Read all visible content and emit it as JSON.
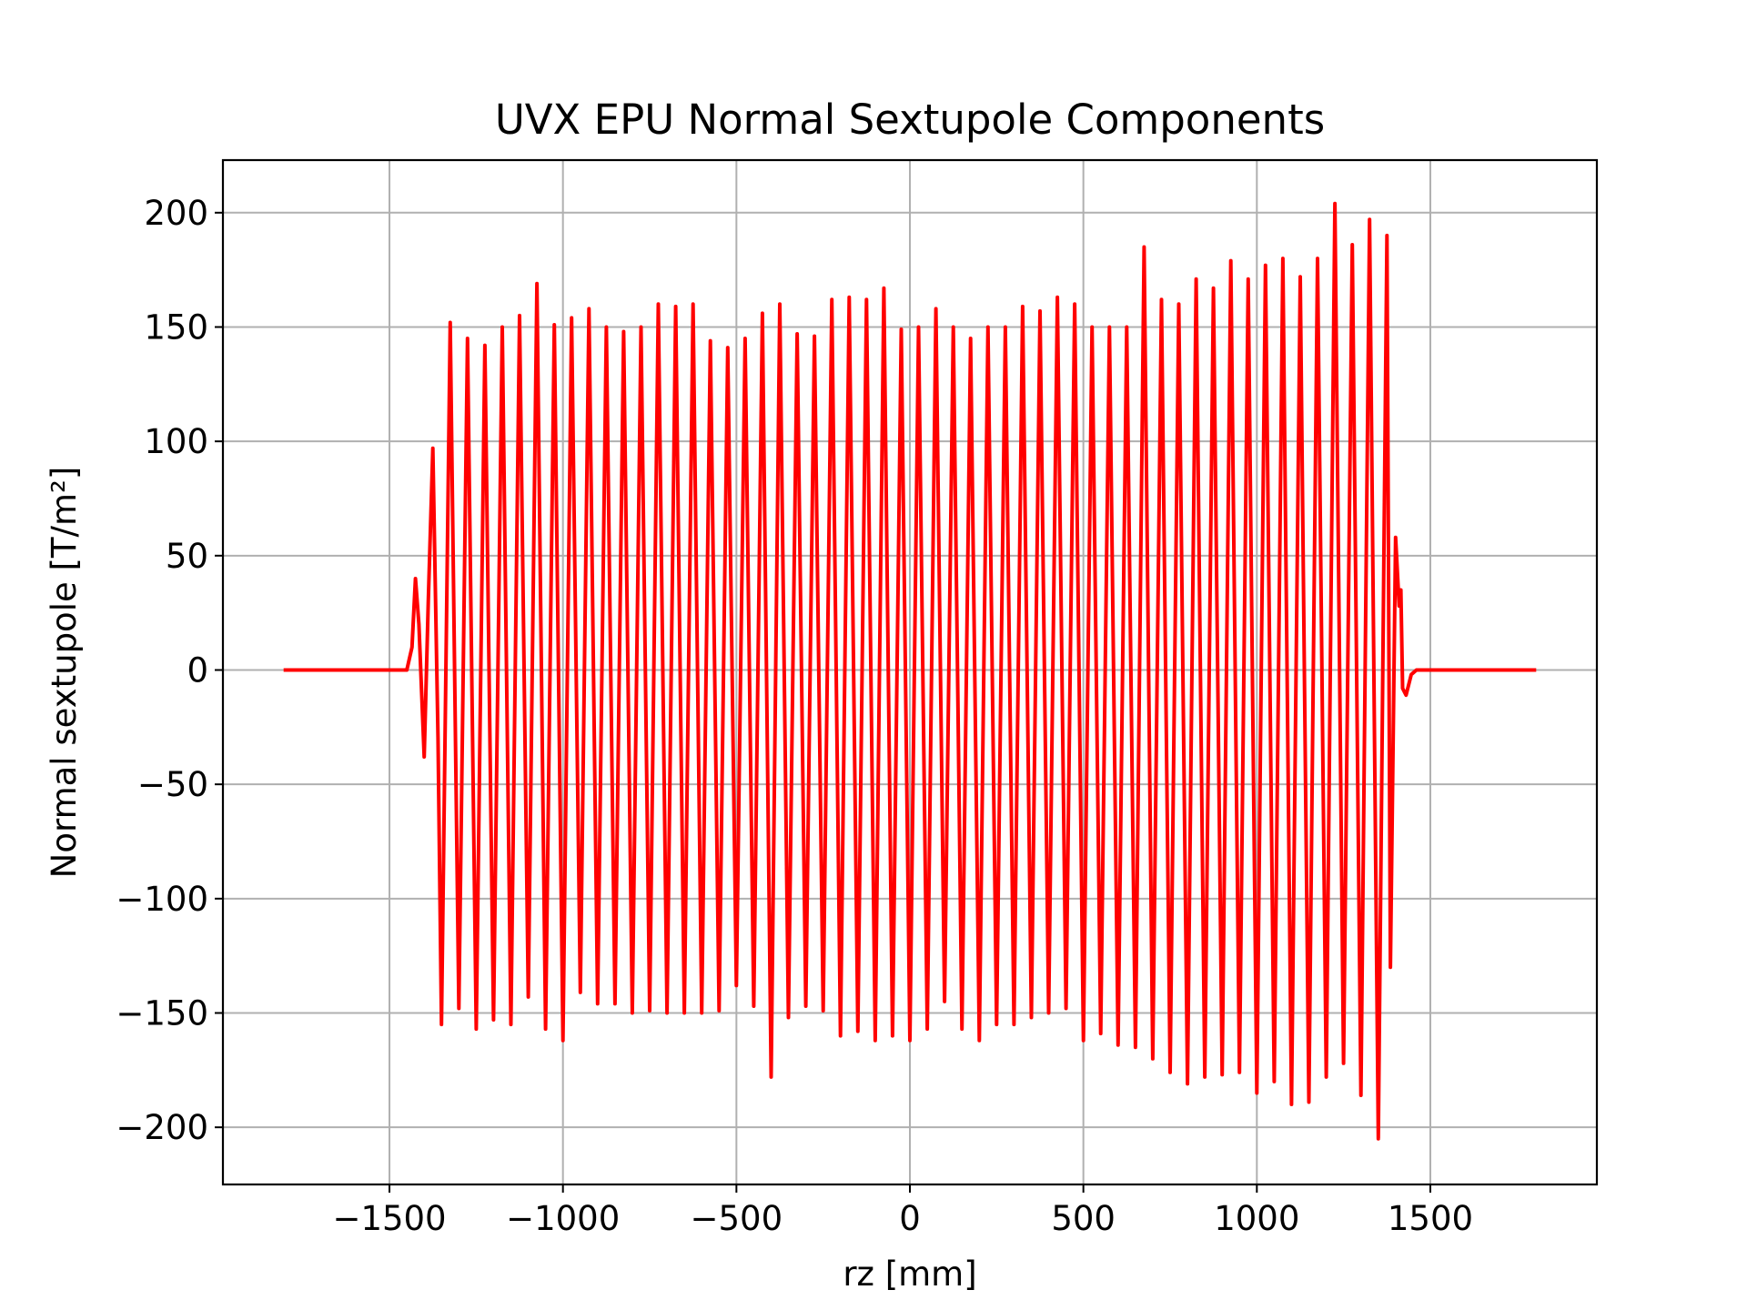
{
  "chart_data": {
    "type": "line",
    "title": "UVX EPU Normal Sextupole Components",
    "xlabel": "rz [mm]",
    "ylabel": "Normal sextupole [T/m²]",
    "xlim": [
      -1980,
      1980
    ],
    "ylim": [
      -225,
      223
    ],
    "x_ticks": [
      -1500,
      -1000,
      -500,
      0,
      500,
      1000,
      1500
    ],
    "y_ticks": [
      -200,
      -150,
      -100,
      -50,
      0,
      50,
      100,
      150,
      200
    ],
    "x_tick_labels": [
      "−1500",
      "−1000",
      "−500",
      "0",
      "500",
      "1000",
      "1500"
    ],
    "y_tick_labels": [
      "−200",
      "−150",
      "−100",
      "−50",
      "0",
      "50",
      "100",
      "150",
      "200"
    ],
    "grid": true,
    "legend": "none",
    "series": [
      {
        "color": "#ff0000",
        "x": [
          -1805,
          -1450,
          -1435,
          -1425,
          -1415,
          -1400,
          -1388,
          -1375,
          -1360,
          -1350,
          -1325,
          -1300,
          -1275,
          -1250,
          -1225,
          -1200,
          -1175,
          -1150,
          -1125,
          -1100,
          -1075,
          -1050,
          -1025,
          -1000,
          -975,
          -950,
          -925,
          -900,
          -875,
          -850,
          -825,
          -800,
          -775,
          -750,
          -725,
          -700,
          -675,
          -650,
          -625,
          -600,
          -575,
          -550,
          -525,
          -500,
          -475,
          -450,
          -425,
          -400,
          -375,
          -350,
          -325,
          -300,
          -275,
          -250,
          -225,
          -200,
          -175,
          -150,
          -125,
          -100,
          -75,
          -50,
          -25,
          0,
          25,
          50,
          75,
          100,
          125,
          150,
          175,
          200,
          225,
          250,
          275,
          300,
          325,
          350,
          375,
          400,
          425,
          450,
          475,
          500,
          525,
          550,
          575,
          600,
          625,
          650,
          675,
          700,
          725,
          750,
          775,
          800,
          825,
          850,
          875,
          900,
          925,
          950,
          975,
          1000,
          1025,
          1050,
          1075,
          1100,
          1125,
          1150,
          1175,
          1200,
          1225,
          1250,
          1275,
          1300,
          1325,
          1350,
          1375,
          1385,
          1400,
          1410,
          1415,
          1420,
          1430,
          1445,
          1460,
          1480,
          1805
        ],
        "y": [
          0,
          0,
          10,
          40,
          20,
          -38,
          30,
          97,
          -30,
          -155,
          152,
          -148,
          145,
          -157,
          142,
          -153,
          150,
          -155,
          155,
          -143,
          169,
          -157,
          151,
          -162,
          154,
          -141,
          158,
          -146,
          150,
          -146,
          148,
          -150,
          150,
          -149,
          160,
          -150,
          159,
          -150,
          160,
          -150,
          144,
          -149,
          141,
          -138,
          145,
          -147,
          156,
          -178,
          160,
          -152,
          147,
          -147,
          146,
          -149,
          162,
          -160,
          163,
          -158,
          162,
          -162,
          167,
          -160,
          149,
          -162,
          150,
          -157,
          158,
          -145,
          150,
          -157,
          145,
          -162,
          150,
          -155,
          150,
          -155,
          159,
          -152,
          157,
          -150,
          163,
          -148,
          160,
          -162,
          150,
          -159,
          150,
          -164,
          150,
          -165,
          185,
          -170,
          162,
          -176,
          160,
          -181,
          171,
          -178,
          167,
          -177,
          179,
          -176,
          171,
          -185,
          177,
          -180,
          180,
          -190,
          172,
          -189,
          180,
          -178,
          204,
          -172,
          186,
          -186,
          197,
          -205,
          190,
          -130,
          58,
          28,
          35,
          -8,
          -11,
          -2,
          0,
          0,
          0
        ]
      }
    ]
  }
}
